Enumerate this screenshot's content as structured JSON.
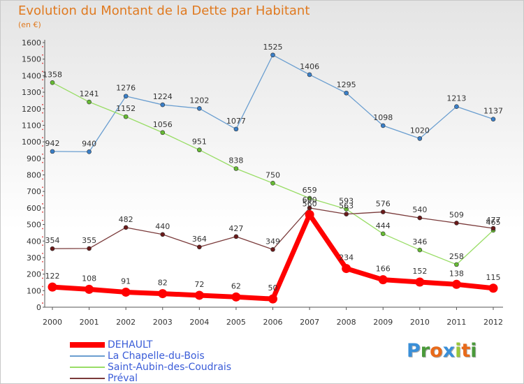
{
  "title": "Evolution du Montant de la Dette par Habitant",
  "unit": "(en €)",
  "logo": {
    "text": "Proxiti",
    "letter_colors": [
      "#3a8fd8",
      "#4a9a3a",
      "#e86a1a",
      "#3a8fd8",
      "#9ac83a",
      "#e86a1a",
      "#4a9a3a"
    ]
  },
  "chart_data": {
    "type": "line",
    "title": "Evolution du Montant de la Dette par Habitant",
    "ylabel": "(en €)",
    "xlabel": "",
    "x": [
      "2000",
      "2001",
      "2002",
      "2003",
      "2004",
      "2005",
      "2006",
      "2007",
      "2008",
      "2009",
      "2010",
      "2011",
      "2012"
    ],
    "ylim": [
      0,
      1600
    ],
    "yticks": [
      0,
      100,
      200,
      300,
      400,
      500,
      600,
      700,
      800,
      900,
      1000,
      1100,
      1200,
      1300,
      1400,
      1500,
      1600
    ],
    "grid": false,
    "legend_position": "bottom-left",
    "series": [
      {
        "name": "DEHAULT",
        "color": "#ff0000",
        "marker": "#ff0000",
        "values": [
          122,
          108,
          91,
          82,
          72,
          62,
          50,
          560,
          234,
          166,
          152,
          138,
          115
        ]
      },
      {
        "name": "La Chapelle-du-Bois",
        "color": "#6a9ed0",
        "marker": "#3a7fc8",
        "values": [
          942,
          940,
          1276,
          1224,
          1202,
          1077,
          1525,
          1406,
          1295,
          1098,
          1020,
          1213,
          1137
        ]
      },
      {
        "name": "Saint-Aubin-des-Coudrais",
        "color": "#99dd66",
        "marker": "#66bb33",
        "values": [
          1358,
          1241,
          1152,
          1056,
          951,
          838,
          750,
          659,
          593,
          444,
          346,
          258,
          465
        ]
      },
      {
        "name": "Préval",
        "color": "#7a3a3a",
        "marker": "#6a1a1a",
        "values": [
          354,
          355,
          482,
          440,
          364,
          427,
          349,
          600,
          563,
          576,
          540,
          509,
          477
        ]
      }
    ]
  }
}
